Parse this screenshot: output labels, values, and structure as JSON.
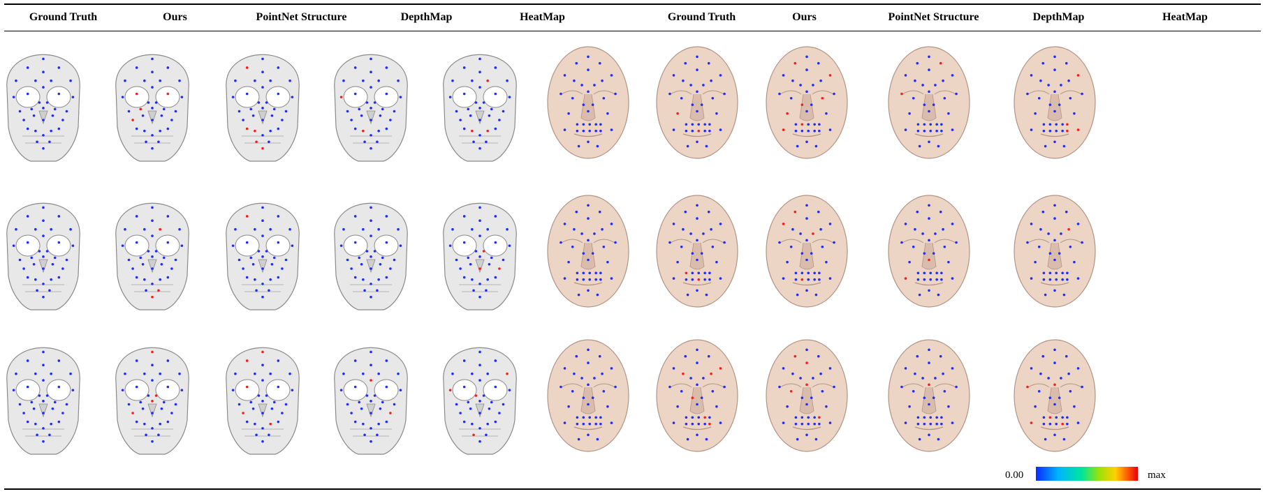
{
  "columns": [
    "Ground Truth",
    "Ours",
    "PointNet Structure",
    "DepthMap",
    "HeatMap",
    "Ground Truth",
    "Ours",
    "PointNet Structure",
    "DepthMap",
    "HeatMap"
  ],
  "panels": [
    {
      "model": "skull",
      "row": 1,
      "column": "Ground Truth"
    },
    {
      "model": "skull",
      "row": 1,
      "column": "Ours"
    },
    {
      "model": "skull",
      "row": 1,
      "column": "PointNet Structure"
    },
    {
      "model": "skull",
      "row": 1,
      "column": "DepthMap"
    },
    {
      "model": "skull",
      "row": 1,
      "column": "HeatMap"
    },
    {
      "model": "face",
      "row": 1,
      "column": "Ground Truth"
    },
    {
      "model": "face",
      "row": 1,
      "column": "Ours"
    },
    {
      "model": "face",
      "row": 1,
      "column": "PointNet Structure"
    },
    {
      "model": "face",
      "row": 1,
      "column": "DepthMap"
    },
    {
      "model": "face",
      "row": 1,
      "column": "HeatMap"
    },
    {
      "model": "skull",
      "row": 2,
      "column": "Ground Truth"
    },
    {
      "model": "skull",
      "row": 2,
      "column": "Ours"
    },
    {
      "model": "skull",
      "row": 2,
      "column": "PointNet Structure"
    },
    {
      "model": "skull",
      "row": 2,
      "column": "DepthMap"
    },
    {
      "model": "skull",
      "row": 2,
      "column": "HeatMap"
    },
    {
      "model": "face",
      "row": 2,
      "column": "Ground Truth"
    },
    {
      "model": "face",
      "row": 2,
      "column": "Ours"
    },
    {
      "model": "face",
      "row": 2,
      "column": "PointNet Structure"
    },
    {
      "model": "face",
      "row": 2,
      "column": "DepthMap"
    },
    {
      "model": "face",
      "row": 2,
      "column": "HeatMap"
    },
    {
      "model": "skull",
      "row": 3,
      "column": "Ground Truth"
    },
    {
      "model": "skull",
      "row": 3,
      "column": "Ours"
    },
    {
      "model": "skull",
      "row": 3,
      "column": "PointNet Structure"
    },
    {
      "model": "skull",
      "row": 3,
      "column": "DepthMap"
    },
    {
      "model": "skull",
      "row": 3,
      "column": "HeatMap"
    },
    {
      "model": "face",
      "row": 3,
      "column": "Ground Truth"
    },
    {
      "model": "face",
      "row": 3,
      "column": "Ours"
    },
    {
      "model": "face",
      "row": 3,
      "column": "PointNet Structure"
    },
    {
      "model": "face",
      "row": 3,
      "column": "DepthMap"
    },
    {
      "model": "face",
      "row": 3,
      "column": "HeatMap"
    }
  ],
  "colorbar": {
    "min_label": "0.00",
    "max_label": "max",
    "colors": [
      "#0a2cff",
      "#00b4ff",
      "#00e59a",
      "#9be20a",
      "#ffd000",
      "#ff5a00",
      "#e60000"
    ]
  },
  "colors": {
    "skull_fill": "#e8e8e8",
    "skull_edge": "#8a8a8a",
    "face_fill": "#edd5c6",
    "face_edge": "#b29384",
    "landmark_low_error": "#1f2bff",
    "landmark_high_error": "#ff1a1a"
  }
}
